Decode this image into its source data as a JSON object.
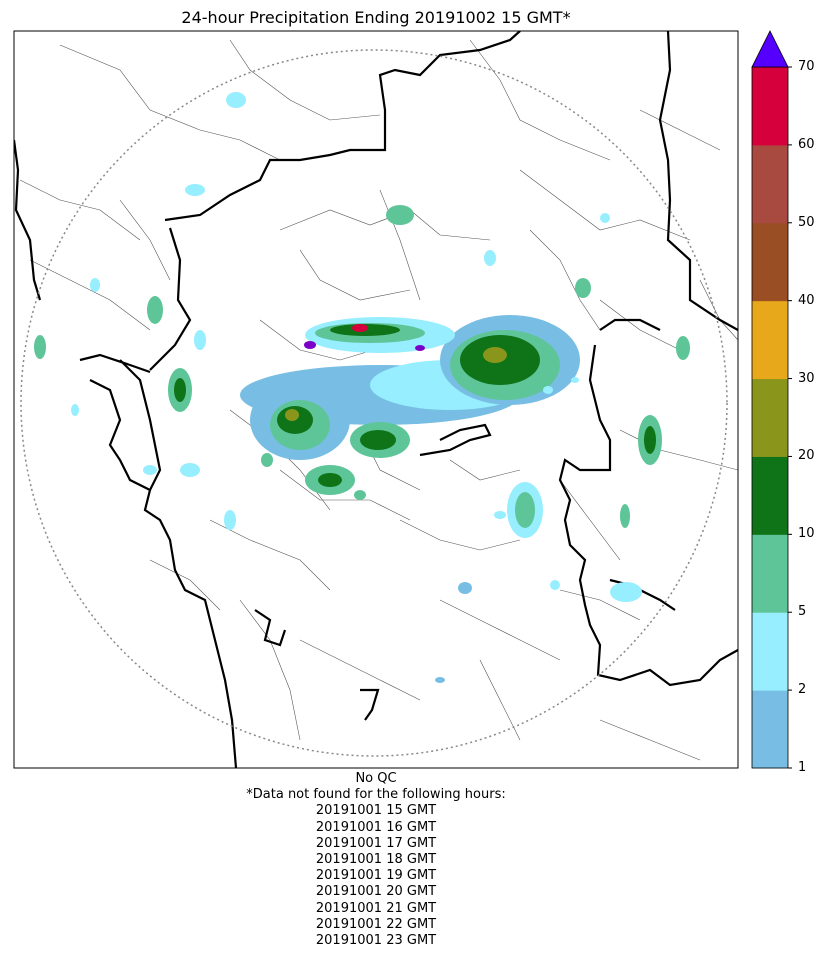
{
  "title": "24-hour Precipitation Ending 20191002 15 GMT*",
  "notes": {
    "qc": "No QC",
    "missing_header": "*Data not found for the following hours:",
    "missing_hours": [
      "20191001 15 GMT",
      "20191001 16 GMT",
      "20191001 17 GMT",
      "20191001 18 GMT",
      "20191001 19 GMT",
      "20191001 20 GMT",
      "20191001 21 GMT",
      "20191001 22 GMT",
      "20191001 23 GMT"
    ]
  },
  "colorbar": {
    "levels": [
      1,
      2,
      5,
      10,
      20,
      30,
      40,
      50,
      60,
      70
    ],
    "tick_labels": [
      "1",
      "2",
      "5",
      "10",
      "20",
      "30",
      "40",
      "50",
      "60",
      "70"
    ],
    "colors": [
      "#78bee4",
      "#96eeff",
      "#5ec598",
      "#0f7418",
      "#8a951c",
      "#e8a81c",
      "#9a4e24",
      "#a84a40",
      "#d6003c"
    ],
    "extend_color": "#5500ff"
  },
  "map_colors": {
    "light_blue": "#78bee4",
    "cyan": "#96eeff",
    "sea_green": "#5ec598",
    "dark_green": "#0f7418",
    "olive": "#8a951c",
    "purple": "#7a00c8",
    "crimson": "#d6003c"
  }
}
